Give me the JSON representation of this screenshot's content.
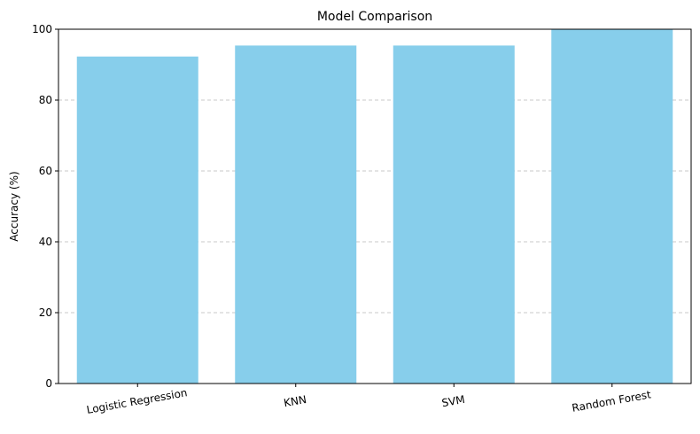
{
  "chart_data": {
    "type": "bar",
    "title": "Model Comparison",
    "xlabel": "",
    "ylabel": "Accuracy (%)",
    "categories": [
      "Logistic Regression",
      "KNN",
      "SVM",
      "Random Forest"
    ],
    "values": [
      92.3,
      95.4,
      95.4,
      100.0
    ],
    "ylim": [
      0,
      100
    ],
    "yticks": [
      "0",
      "20",
      "40",
      "60",
      "80",
      "100"
    ],
    "grid": "y-dashed",
    "bar_color": "#87CEEB",
    "grid_color": "#c8c8c8",
    "legend": "none"
  }
}
